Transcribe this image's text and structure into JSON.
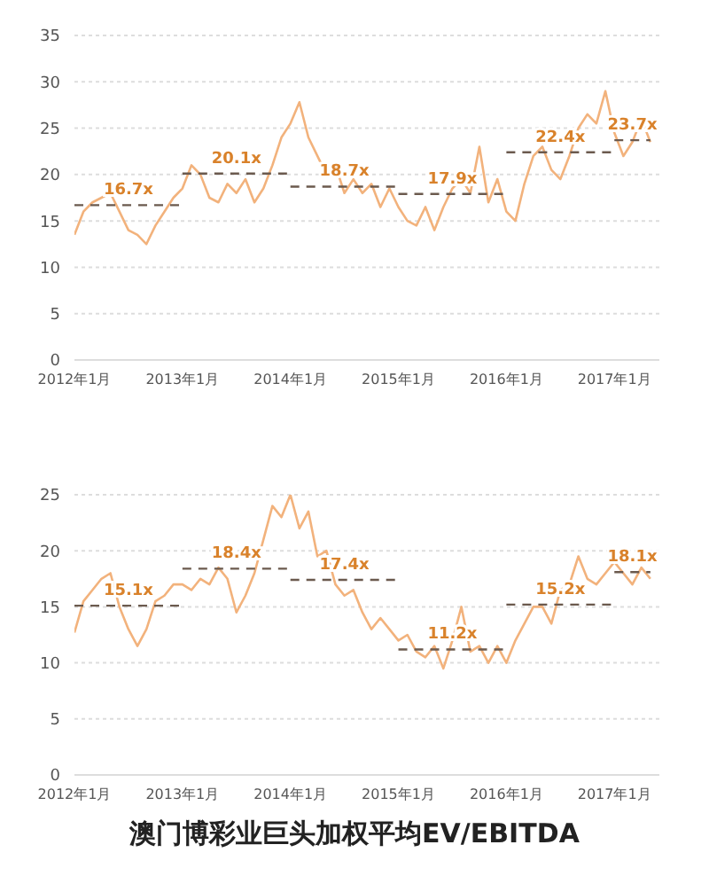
{
  "chart_data": [
    {
      "type": "line",
      "xlim": [
        "2012-01",
        "2017-06"
      ],
      "xticks": [
        {
          "value": "2012-01",
          "label": "2012年1月"
        },
        {
          "value": "2013-01",
          "label": "2013年1月"
        },
        {
          "value": "2014-01",
          "label": "2014年1月"
        },
        {
          "value": "2015-01",
          "label": "2015年1月"
        },
        {
          "value": "2016-01",
          "label": "2016年1月"
        },
        {
          "value": "2017-01",
          "label": "2017年1月"
        }
      ],
      "ylim": [
        0,
        35
      ],
      "yticks": [
        0,
        5,
        10,
        15,
        20,
        25,
        30,
        35
      ],
      "grid": "y",
      "marker": "none",
      "x": [
        "2012-01",
        "2012-02",
        "2012-03",
        "2012-04",
        "2012-05",
        "2012-06",
        "2012-07",
        "2012-08",
        "2012-09",
        "2012-10",
        "2012-11",
        "2012-12",
        "2013-01",
        "2013-02",
        "2013-03",
        "2013-04",
        "2013-05",
        "2013-06",
        "2013-07",
        "2013-08",
        "2013-09",
        "2013-10",
        "2013-11",
        "2013-12",
        "2014-01",
        "2014-02",
        "2014-03",
        "2014-04",
        "2014-05",
        "2014-06",
        "2014-07",
        "2014-08",
        "2014-09",
        "2014-10",
        "2014-11",
        "2014-12",
        "2015-01",
        "2015-02",
        "2015-03",
        "2015-04",
        "2015-05",
        "2015-06",
        "2015-07",
        "2015-08",
        "2015-09",
        "2015-10",
        "2015-11",
        "2015-12",
        "2016-01",
        "2016-02",
        "2016-03",
        "2016-04",
        "2016-05",
        "2016-06",
        "2016-07",
        "2016-08",
        "2016-09",
        "2016-10",
        "2016-11",
        "2016-12",
        "2017-01",
        "2017-02",
        "2017-03",
        "2017-04",
        "2017-05"
      ],
      "series": [
        {
          "color": "#f2b27c",
          "values": [
            13.5,
            16,
            17,
            17.5,
            18,
            16,
            14,
            13.5,
            12.5,
            14.5,
            16,
            17.5,
            18.5,
            21,
            20,
            17.5,
            17,
            19,
            18,
            19.5,
            17,
            18.5,
            21,
            24,
            25.5,
            27.8,
            24,
            22,
            20,
            21,
            18,
            19.5,
            18,
            19,
            16.5,
            18.5,
            16.5,
            15,
            14.5,
            16.5,
            14,
            16.5,
            18.5,
            19.5,
            18,
            23,
            17,
            19.5,
            16,
            15,
            19,
            22,
            23,
            20.5,
            19.5,
            22,
            25,
            26.5,
            25.5,
            29,
            24.5,
            22,
            23.5,
            26,
            23.5
          ]
        },
        {
          "type": "line",
          "line_style": "dashed",
          "color": "#6b5a4e",
          "x": [
            "2012-01",
            "2012-07",
            "2013-01"
          ],
          "values": [
            16.7,
            16.7,
            16.7
          ],
          "value_labels": [
            null,
            "16.7x",
            null
          ]
        },
        {
          "type": "line",
          "line_style": "dashed",
          "color": "#6b5a4e",
          "x": [
            "2013-01",
            "2013-07",
            "2014-01"
          ],
          "values": [
            20.1,
            20.1,
            20.1
          ],
          "value_labels": [
            null,
            "20.1x",
            null
          ]
        },
        {
          "type": "line",
          "line_style": "dashed",
          "color": "#6b5a4e",
          "x": [
            "2014-01",
            "2014-07",
            "2015-01"
          ],
          "values": [
            18.7,
            18.7,
            18.7
          ],
          "value_labels": [
            null,
            "18.7x",
            null
          ]
        },
        {
          "type": "line",
          "line_style": "dashed",
          "color": "#6b5a4e",
          "x": [
            "2015-01",
            "2015-07",
            "2016-01"
          ],
          "values": [
            17.9,
            17.9,
            17.9
          ],
          "value_labels": [
            null,
            "17.9x",
            null
          ]
        },
        {
          "type": "line",
          "line_style": "dashed",
          "color": "#6b5a4e",
          "x": [
            "2016-01",
            "2016-07",
            "2017-01"
          ],
          "values": [
            22.4,
            22.4,
            22.4
          ],
          "value_labels": [
            null,
            "22.4x",
            null
          ]
        },
        {
          "type": "line",
          "line_style": "dashed",
          "color": "#6b5a4e",
          "x": [
            "2017-01",
            "2017-03",
            "2017-05"
          ],
          "values": [
            23.7,
            23.7,
            23.7
          ],
          "value_labels": [
            null,
            "23.7x",
            null
          ]
        }
      ]
    },
    {
      "type": "line",
      "title": "澳门博彩业巨头加权平均EV/EBITDA",
      "xlim": [
        "2012-01",
        "2017-06"
      ],
      "xticks": [
        {
          "value": "2012-01",
          "label": "2012年1月"
        },
        {
          "value": "2013-01",
          "label": "2013年1月"
        },
        {
          "value": "2014-01",
          "label": "2014年1月"
        },
        {
          "value": "2015-01",
          "label": "2015年1月"
        },
        {
          "value": "2016-01",
          "label": "2016年1月"
        },
        {
          "value": "2017-01",
          "label": "2017年1月"
        }
      ],
      "ylim": [
        0,
        25
      ],
      "yticks": [
        0,
        5,
        10,
        15,
        20,
        25
      ],
      "grid": "y",
      "marker": "none",
      "x": [
        "2012-01",
        "2012-02",
        "2012-03",
        "2012-04",
        "2012-05",
        "2012-06",
        "2012-07",
        "2012-08",
        "2012-09",
        "2012-10",
        "2012-11",
        "2012-12",
        "2013-01",
        "2013-02",
        "2013-03",
        "2013-04",
        "2013-05",
        "2013-06",
        "2013-07",
        "2013-08",
        "2013-09",
        "2013-10",
        "2013-11",
        "2013-12",
        "2014-01",
        "2014-02",
        "2014-03",
        "2014-04",
        "2014-05",
        "2014-06",
        "2014-07",
        "2014-08",
        "2014-09",
        "2014-10",
        "2014-11",
        "2014-12",
        "2015-01",
        "2015-02",
        "2015-03",
        "2015-04",
        "2015-05",
        "2015-06",
        "2015-07",
        "2015-08",
        "2015-09",
        "2015-10",
        "2015-11",
        "2015-12",
        "2016-01",
        "2016-02",
        "2016-03",
        "2016-04",
        "2016-05",
        "2016-06",
        "2016-07",
        "2016-08",
        "2016-09",
        "2016-10",
        "2016-11",
        "2016-12",
        "2017-01",
        "2017-02",
        "2017-03",
        "2017-04",
        "2017-05"
      ],
      "series": [
        {
          "color": "#f2b27c",
          "values": [
            12.7,
            15.5,
            16.5,
            17.5,
            18,
            15,
            13,
            11.5,
            13,
            15.5,
            16,
            17,
            17,
            16.5,
            17.5,
            17,
            18.5,
            17.5,
            14.5,
            16,
            18,
            21,
            24,
            23,
            25,
            22,
            23.5,
            19.5,
            20,
            17,
            16,
            16.5,
            14.5,
            13,
            14,
            13,
            12,
            12.5,
            11,
            10.5,
            11.5,
            9.5,
            12,
            15,
            11,
            11.5,
            10,
            11.5,
            10,
            12,
            13.5,
            15,
            15,
            13.5,
            16.5,
            17,
            19.5,
            17.5,
            17,
            18,
            19,
            18,
            17,
            18.5,
            17.5
          ]
        },
        {
          "type": "line",
          "line_style": "dashed",
          "color": "#6b5a4e",
          "x": [
            "2012-01",
            "2012-07",
            "2013-01"
          ],
          "values": [
            15.1,
            15.1,
            15.1
          ],
          "value_labels": [
            null,
            "15.1x",
            null
          ]
        },
        {
          "type": "line",
          "line_style": "dashed",
          "color": "#6b5a4e",
          "x": [
            "2013-01",
            "2013-07",
            "2014-01"
          ],
          "values": [
            18.4,
            18.4,
            18.4
          ],
          "value_labels": [
            null,
            "18.4x",
            null
          ]
        },
        {
          "type": "line",
          "line_style": "dashed",
          "color": "#6b5a4e",
          "x": [
            "2014-01",
            "2014-07",
            "2015-01"
          ],
          "values": [
            17.4,
            17.4,
            17.4
          ],
          "value_labels": [
            null,
            "17.4x",
            null
          ]
        },
        {
          "type": "line",
          "line_style": "dashed",
          "color": "#6b5a4e",
          "x": [
            "2015-01",
            "2015-07",
            "2016-01"
          ],
          "values": [
            11.2,
            11.2,
            11.2
          ],
          "value_labels": [
            null,
            "11.2x",
            null
          ]
        },
        {
          "type": "line",
          "line_style": "dashed",
          "color": "#6b5a4e",
          "x": [
            "2016-01",
            "2016-07",
            "2017-01"
          ],
          "values": [
            15.2,
            15.2,
            15.2
          ],
          "value_labels": [
            null,
            "15.2x",
            null
          ]
        },
        {
          "type": "line",
          "line_style": "dashed",
          "color": "#6b5a4e",
          "x": [
            "2017-01",
            "2017-03",
            "2017-05"
          ],
          "values": [
            18.1,
            18.1,
            18.1
          ],
          "value_labels": [
            null,
            "18.1x",
            null
          ]
        }
      ]
    }
  ]
}
